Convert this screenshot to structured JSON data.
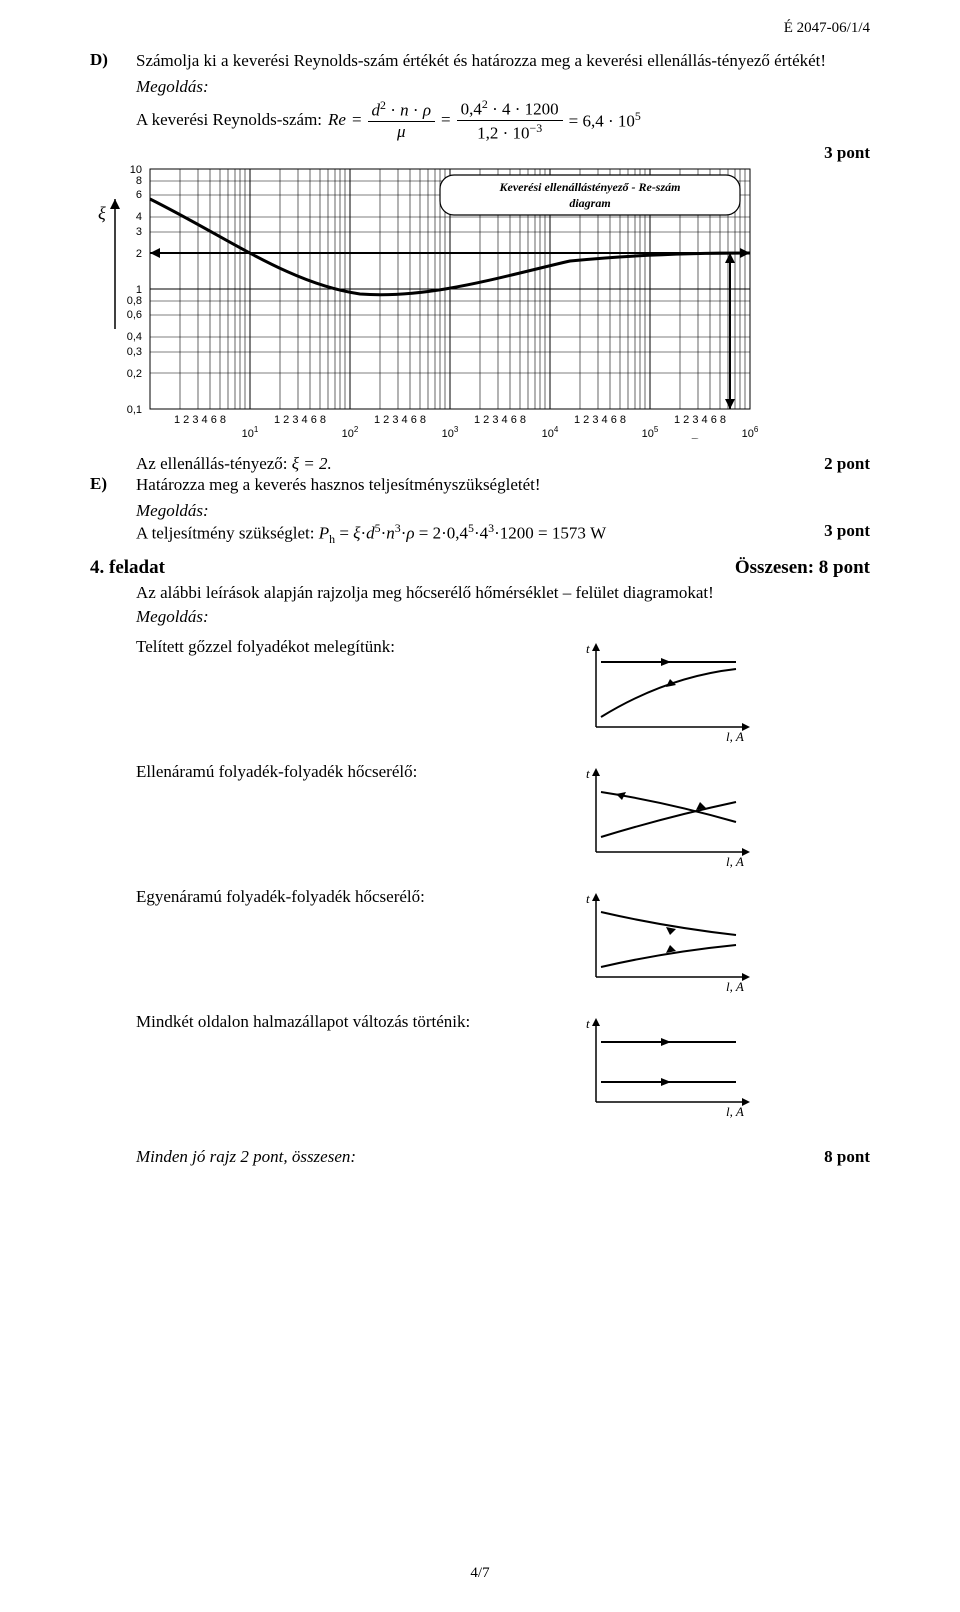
{
  "header_code": "É 2047-06/1/4",
  "taskD": {
    "letter": "D)",
    "text": "Számolja ki a keverési Reynolds-szám értékét és határozza meg a keverési ellenállás-tényező értékét!",
    "megoldas": "Megoldás:",
    "re_label": "A keverési Reynolds-szám:",
    "points": "3 pont",
    "chart_title": "Keverési ellenállástényező - Re-szám diagram",
    "xi_label": "ξ",
    "re_axis": "Re",
    "y_ticks_top": [
      "10",
      "8",
      "6",
      "4",
      "3",
      "2"
    ],
    "y_ticks_bot": [
      "1",
      "0,8",
      "0,6",
      "0,4",
      "0,3",
      "0,2",
      "0,1"
    ],
    "x_decades": [
      "10",
      "10",
      "10",
      "10",
      "10",
      "10"
    ],
    "x_exp": [
      "1",
      "2",
      "3",
      "4",
      "5",
      "6"
    ],
    "x_sub": "1  2  3 4  6 8",
    "ellenallas": "Az ellenállás-tényező: ",
    "xi_val": "ξ = 2.",
    "ellenallas_pts": "2 pont"
  },
  "taskE": {
    "letter": "E)",
    "text": "Határozza meg a keverés hasznos teljesítményszükségletét!",
    "megoldas": "Megoldás:",
    "telj_label": "A teljesítmény szükséglet: ",
    "telj_pts": "3 pont"
  },
  "task4": {
    "title": "4.  feladat",
    "total": "Összesen: 8 pont",
    "intro": "Az alábbi leírások alapján rajzolja meg hőcserélő hőmérséklet – felület diagramokat!",
    "megoldas": "Megoldás:",
    "sketches": [
      {
        "label": "Telített gőzzel folyadékot melegítünk:",
        "type": "sat"
      },
      {
        "label": "Ellenáramú folyadék-folyadék hőcserélő:",
        "type": "counter"
      },
      {
        "label": "Egyenáramú folyadék-folyadék hőcserélő:",
        "type": "co"
      },
      {
        "label": "Mindkét oldalon halmazállapot változás történik:",
        "type": "both"
      }
    ],
    "axis_y": "t",
    "axis_x": "l, A",
    "footer_line": "Minden jó rajz 2 pont, összesen:",
    "footer_pts": "8 pont"
  },
  "page_num": "4/7",
  "style": {
    "page_bg": "#ffffff",
    "ink": "#000000",
    "chart_line_w": 1,
    "curve_w": 3,
    "arrow_w": 2
  }
}
